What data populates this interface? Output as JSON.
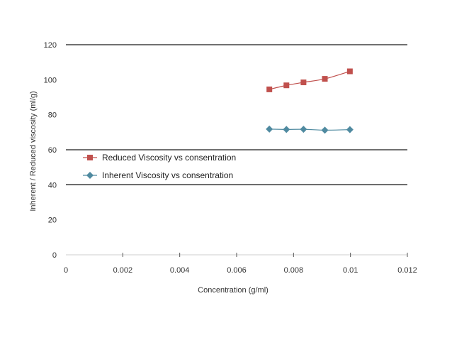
{
  "chart_data": {
    "type": "line",
    "title": "",
    "xlabel": "Concentration (g/ml)",
    "ylabel": "Inherent / Reduced viscosity (ml/g)",
    "xlim": [
      0,
      0.012
    ],
    "ylim": [
      0,
      120
    ],
    "x_ticks": [
      0,
      0.002,
      0.004,
      0.006,
      0.008,
      0.01,
      0.012
    ],
    "x_tick_labels": [
      "0",
      "0.002",
      "0.004",
      "0.006",
      "0.008",
      "0.01",
      "0.012"
    ],
    "y_ticks": [
      0,
      20,
      40,
      60,
      80,
      100,
      120
    ],
    "y_tick_labels": [
      "0",
      "20",
      "40",
      "60",
      "80",
      "100",
      "120"
    ],
    "gridlines_y": [
      40,
      60,
      120
    ],
    "legend_position": "left-middle",
    "series": [
      {
        "name": "Reduced Viscosity vs consentration",
        "marker": "square",
        "color": "#c0504d",
        "x": [
          0.00715,
          0.00775,
          0.00835,
          0.0091,
          0.00998
        ],
        "y": [
          94.5,
          96.8,
          98.5,
          100.5,
          104.8
        ]
      },
      {
        "name": "Inherent Viscosity vs consentration",
        "marker": "diamond",
        "color": "#4f8aa0",
        "x": [
          0.00715,
          0.00775,
          0.00835,
          0.0091,
          0.00998
        ],
        "y": [
          71.8,
          71.6,
          71.7,
          71.2,
          71.5
        ]
      }
    ]
  }
}
